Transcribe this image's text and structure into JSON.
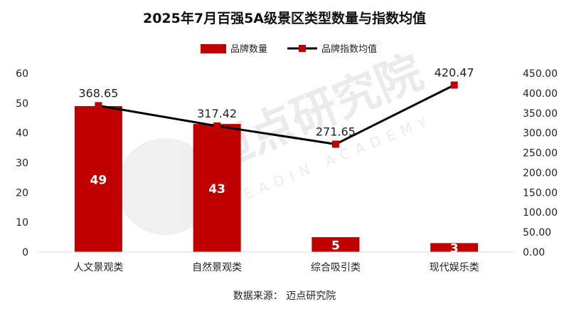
{
  "chart_data": {
    "type": "bar",
    "title": "2025年7月百强5A级景区类型数量与指数均值",
    "categories": [
      "人文景观类",
      "自然景观类",
      "综合吸引类",
      "现代娱乐类"
    ],
    "series": [
      {
        "name": "品牌数量",
        "type": "bar",
        "axis": "left",
        "color": "#c00000",
        "values": [
          49,
          43,
          5,
          3
        ],
        "labels": [
          "49",
          "43",
          "5",
          "3"
        ]
      },
      {
        "name": "品牌指数均值",
        "type": "line",
        "axis": "right",
        "line_color": "#000000",
        "marker_color": "#c00000",
        "values": [
          368.65,
          317.42,
          271.65,
          420.47
        ],
        "labels": [
          "368.65",
          "317.42",
          "271.65",
          "420.47"
        ]
      }
    ],
    "y_left": {
      "lim": [
        0,
        60
      ],
      "ticks": [
        "0",
        "10",
        "20",
        "30",
        "40",
        "50",
        "60"
      ]
    },
    "y_right": {
      "lim": [
        0,
        450
      ],
      "ticks": [
        "0.00",
        "50.00",
        "100.00",
        "150.00",
        "200.00",
        "250.00",
        "300.00",
        "350.00",
        "400.00",
        "450.00"
      ]
    },
    "legend_position": "top-center",
    "grid": false
  },
  "watermark": {
    "cn": "迈点研究院",
    "en": "MEADIN ACADEMY"
  },
  "source_note": "数据来源：  迈点研究院"
}
